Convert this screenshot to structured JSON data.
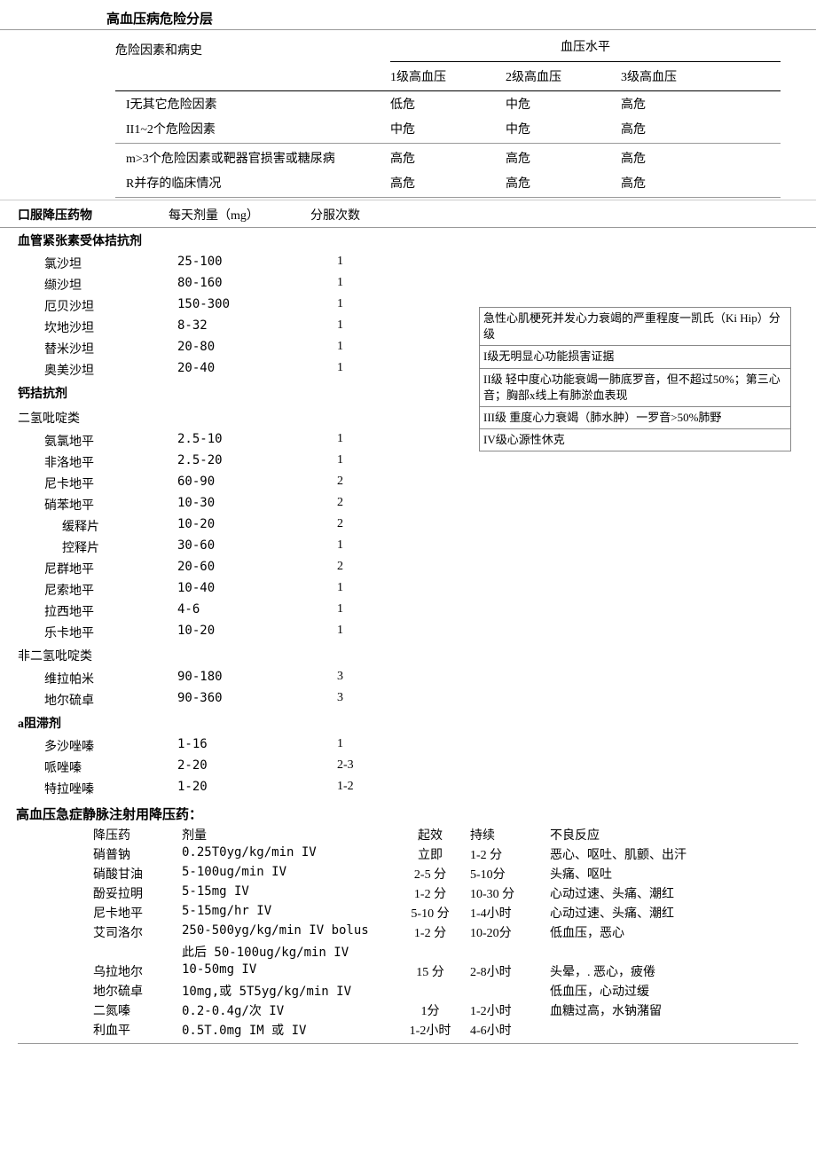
{
  "title": "高血压病危险分层",
  "risk": {
    "header_left": "危险因素和病史",
    "header_right": "血压水平",
    "cols": [
      "1级高血压",
      "2级高血压",
      "3级高血压"
    ],
    "rows": [
      {
        "label": "I无其它危险因素",
        "cells": [
          "低危",
          "中危",
          "高危"
        ]
      },
      {
        "label": "II1~2个危险因素",
        "cells": [
          "中危",
          "中危",
          "高危"
        ]
      },
      {
        "label": "m>3个危险因素或靶器官损害或糖尿病",
        "cells": [
          "高危",
          "高危",
          "高危"
        ]
      },
      {
        "label": "R并存的临床情况",
        "cells": [
          "高危",
          "高危",
          "高危"
        ]
      }
    ]
  },
  "drugs": {
    "headers": [
      "口服降压药物",
      "每天剂量（mg）",
      "分服次数"
    ],
    "groups": [
      {
        "cat": "血管紧张素受体拮抗剂",
        "rows": [
          {
            "name": "氯沙坦",
            "dose": "25-100",
            "freq": "1"
          },
          {
            "name": "缬沙坦",
            "dose": "80-160",
            "freq": "1"
          },
          {
            "name": "厄贝沙坦",
            "dose": "150-300",
            "freq": "1"
          },
          {
            "name": "坎地沙坦",
            "dose": "8-32",
            "freq": "1"
          },
          {
            "name": "替米沙坦",
            "dose": "20-80",
            "freq": "1"
          },
          {
            "name": "奥美沙坦",
            "dose": "20-40",
            "freq": "1"
          }
        ]
      },
      {
        "cat": "钙拮抗剂",
        "subcats": [
          {
            "sub": "二氢吡啶类",
            "rows": [
              {
                "name": "氨氯地平",
                "dose": "2.5-10",
                "freq": "1"
              },
              {
                "name": "非洛地平",
                "dose": "2.5-20",
                "freq": "1"
              },
              {
                "name": "尼卡地平",
                "dose": "60-90",
                "freq": "2"
              },
              {
                "name": "硝苯地平",
                "dose": "10-30",
                "freq": "2"
              },
              {
                "name": "缓释片",
                "dose": "10-20",
                "freq": "2",
                "indent": true
              },
              {
                "name": "控释片",
                "dose": "30-60",
                "freq": "1",
                "indent": true
              },
              {
                "name": "尼群地平",
                "dose": "20-60",
                "freq": "2"
              },
              {
                "name": "尼索地平",
                "dose": "10-40",
                "freq": "1"
              },
              {
                "name": "拉西地平",
                "dose": "4-6",
                "freq": "1"
              },
              {
                "name": "乐卡地平",
                "dose": "10-20",
                "freq": "1"
              }
            ]
          },
          {
            "sub": "非二氢吡啶类",
            "rows": [
              {
                "name": "维拉帕米",
                "dose": "90-180",
                "freq": "3"
              },
              {
                "name": "地尔硫卓",
                "dose": "90-360",
                "freq": "3"
              }
            ]
          }
        ]
      },
      {
        "cat": "a阻滞剂",
        "rows": [
          {
            "name": "多沙唑嗪",
            "dose": "1-16",
            "freq": "1"
          },
          {
            "name": "哌唑嗪",
            "dose": "2-20",
            "freq": "2-3"
          },
          {
            "name": "特拉唑嗪",
            "dose": "1-20",
            "freq": "1-2"
          }
        ]
      }
    ]
  },
  "killip": {
    "rows": [
      "急性心肌梗死并发心力衰竭的严重程度一凯氏（Ki Hip）分级",
      "I级无明显心功能损害证据",
      "II级  轻中度心功能衰竭一肺底罗音，但不超过50%；第三心音；胸部x线上有肺淤血表现",
      "III级  重度心力衰竭（肺水肿）一罗音>50%肺野",
      "IV级心源性休克"
    ]
  },
  "iv": {
    "title": "高血压急症静脉注射用降压药：",
    "headers": [
      "降压药",
      "剂量",
      "起效",
      "持续",
      "不良反应"
    ],
    "rows": [
      {
        "c": [
          "硝普钠",
          "0.25T0yg/kg/min IV",
          "立即",
          "1-2 分",
          "恶心、呕吐、肌颤、出汗"
        ]
      },
      {
        "c": [
          "硝酸甘油",
          "5-100ug/min IV",
          "2-5 分",
          "5-10分",
          "头痛、呕吐"
        ]
      },
      {
        "c": [
          "酚妥拉明",
          "5-15mg IV",
          "1-2 分",
          "10-30 分",
          "心动过速、头痛、潮红"
        ]
      },
      {
        "c": [
          "尼卡地平",
          "5-15mg/hr IV",
          "5-10 分",
          "1-4小时",
          "心动过速、头痛、潮红"
        ]
      },
      {
        "c": [
          "艾司洛尔",
          "250-500yg/kg/min IV bolus",
          "1-2 分",
          "10-20分",
          "低血压，恶心"
        ]
      },
      {
        "c": [
          "",
          "此后 50-100ug/kg/min IV",
          "",
          "",
          ""
        ]
      },
      {
        "c": [
          "乌拉地尔",
          "10-50mg IV",
          "15 分",
          "2-8小时",
          "头晕，. 恶心，疲倦"
        ]
      },
      {
        "c": [
          "地尔硫卓",
          "10mg,或 5T5yg/kg/min IV",
          "",
          "",
          "低血压，心动过缓"
        ]
      },
      {
        "c": [
          "二氮嗪",
          "0.2-0.4g/次 IV",
          "1分",
          "1-2小时",
          "血糖过高，水钠潴留"
        ]
      },
      {
        "c": [
          "利血平",
          "0.5T.0mg IM 或 IV",
          "1-2小时",
          "4-6小时",
          ""
        ]
      }
    ]
  }
}
